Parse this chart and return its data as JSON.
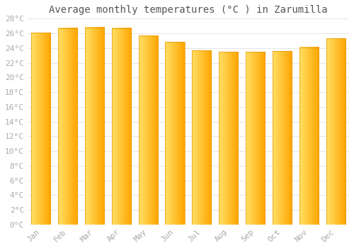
{
  "title": "Average monthly temperatures (°C ) in Zarumilla",
  "months": [
    "Jan",
    "Feb",
    "Mar",
    "Apr",
    "May",
    "Jun",
    "Jul",
    "Aug",
    "Sep",
    "Oct",
    "Nov",
    "Dec"
  ],
  "values": [
    26.1,
    26.7,
    26.8,
    26.7,
    25.7,
    24.8,
    23.7,
    23.5,
    23.5,
    23.6,
    24.1,
    25.3
  ],
  "bar_color_left": "#FFE066",
  "bar_color_right": "#FFA500",
  "bar_edge_color": "#E89400",
  "ylim": [
    0,
    28
  ],
  "yticks": [
    0,
    2,
    4,
    6,
    8,
    10,
    12,
    14,
    16,
    18,
    20,
    22,
    24,
    26,
    28
  ],
  "background_color": "#ffffff",
  "grid_color": "#e0e0e0",
  "title_fontsize": 10,
  "tick_fontsize": 8,
  "title_color": "#555555",
  "tick_color": "#aaaaaa",
  "font_family": "monospace"
}
